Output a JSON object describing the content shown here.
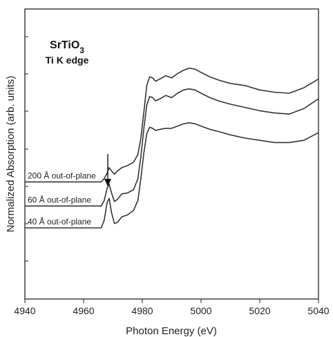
{
  "chart_data": {
    "type": "line",
    "title": "SrTiO3",
    "subtitle": "Ti K edge",
    "xlabel": "Photon Energy (eV)",
    "ylabel": "Normalized Absorption (arb. units)",
    "xlim": [
      4940,
      5040
    ],
    "x_ticks": [
      4940,
      4960,
      4980,
      5000,
      5020,
      5040
    ],
    "y_ticks_labeled": false,
    "grid": false,
    "legend": "none",
    "annotations": [
      {
        "type": "arrow",
        "text": "",
        "x": 4968.5,
        "points_to": "pre-edge peak"
      }
    ],
    "line_color": "#333333",
    "series": [
      {
        "name": "200 Å out-of-plane",
        "x": [
          4966,
          4967,
          4968,
          4968.7,
          4969.5,
          4970.5,
          4971.5,
          4973,
          4975,
          4977,
          4978.5,
          4979.5,
          4980.5,
          4981.5,
          4982.5,
          4983.5,
          4984.5,
          4986,
          4988,
          4990,
          4992,
          4994,
          4996,
          4998,
          5000,
          5003,
          5006,
          5010,
          5015,
          5020,
          5025,
          5030,
          5035,
          5040
        ],
        "y": [
          0.42,
          0.45,
          0.5,
          0.55,
          0.52,
          0.49,
          0.52,
          0.55,
          0.57,
          0.6,
          0.67,
          0.82,
          1.05,
          1.3,
          1.38,
          1.37,
          1.34,
          1.36,
          1.39,
          1.37,
          1.41,
          1.44,
          1.46,
          1.45,
          1.42,
          1.38,
          1.35,
          1.32,
          1.3,
          1.26,
          1.24,
          1.23,
          1.28,
          1.36
        ]
      },
      {
        "name": "60 Å out-of-plane",
        "x": [
          4966,
          4967,
          4968,
          4968.7,
          4969.5,
          4970.5,
          4971.5,
          4973,
          4975,
          4977,
          4978.5,
          4979.5,
          4980.5,
          4981.5,
          4982.5,
          4983.5,
          4984.5,
          4986,
          4988,
          4990,
          4992,
          4994,
          4996,
          4998,
          5000,
          5003,
          5006,
          5010,
          5015,
          5020,
          5025,
          5030,
          5035,
          5040
        ],
        "y": [
          0.2,
          0.25,
          0.36,
          0.4,
          0.32,
          0.24,
          0.26,
          0.31,
          0.32,
          0.35,
          0.45,
          0.65,
          0.9,
          1.12,
          1.2,
          1.19,
          1.16,
          1.18,
          1.21,
          1.19,
          1.23,
          1.26,
          1.27,
          1.26,
          1.23,
          1.19,
          1.16,
          1.13,
          1.1,
          1.07,
          1.05,
          1.04,
          1.09,
          1.18
        ]
      },
      {
        "name": "40 Å out-of-plane",
        "x": [
          4966,
          4967,
          4968,
          4968.7,
          4969.5,
          4970.5,
          4971.5,
          4973,
          4975,
          4977,
          4978.5,
          4979.5,
          4980.5,
          4981.5,
          4982.5,
          4983.5,
          4984.5,
          4986,
          4988,
          4990,
          4992,
          4994,
          4996,
          4998,
          5000,
          5003,
          5006,
          5010,
          5015,
          5020,
          5025,
          5030,
          5035,
          5040
        ],
        "y": [
          0.0,
          0.07,
          0.23,
          0.27,
          0.14,
          0.04,
          0.05,
          0.1,
          0.12,
          0.16,
          0.25,
          0.45,
          0.68,
          0.86,
          0.92,
          0.91,
          0.89,
          0.9,
          0.91,
          0.91,
          0.93,
          0.95,
          0.96,
          0.95,
          0.93,
          0.9,
          0.88,
          0.85,
          0.82,
          0.8,
          0.78,
          0.78,
          0.8,
          0.87
        ]
      }
    ]
  }
}
